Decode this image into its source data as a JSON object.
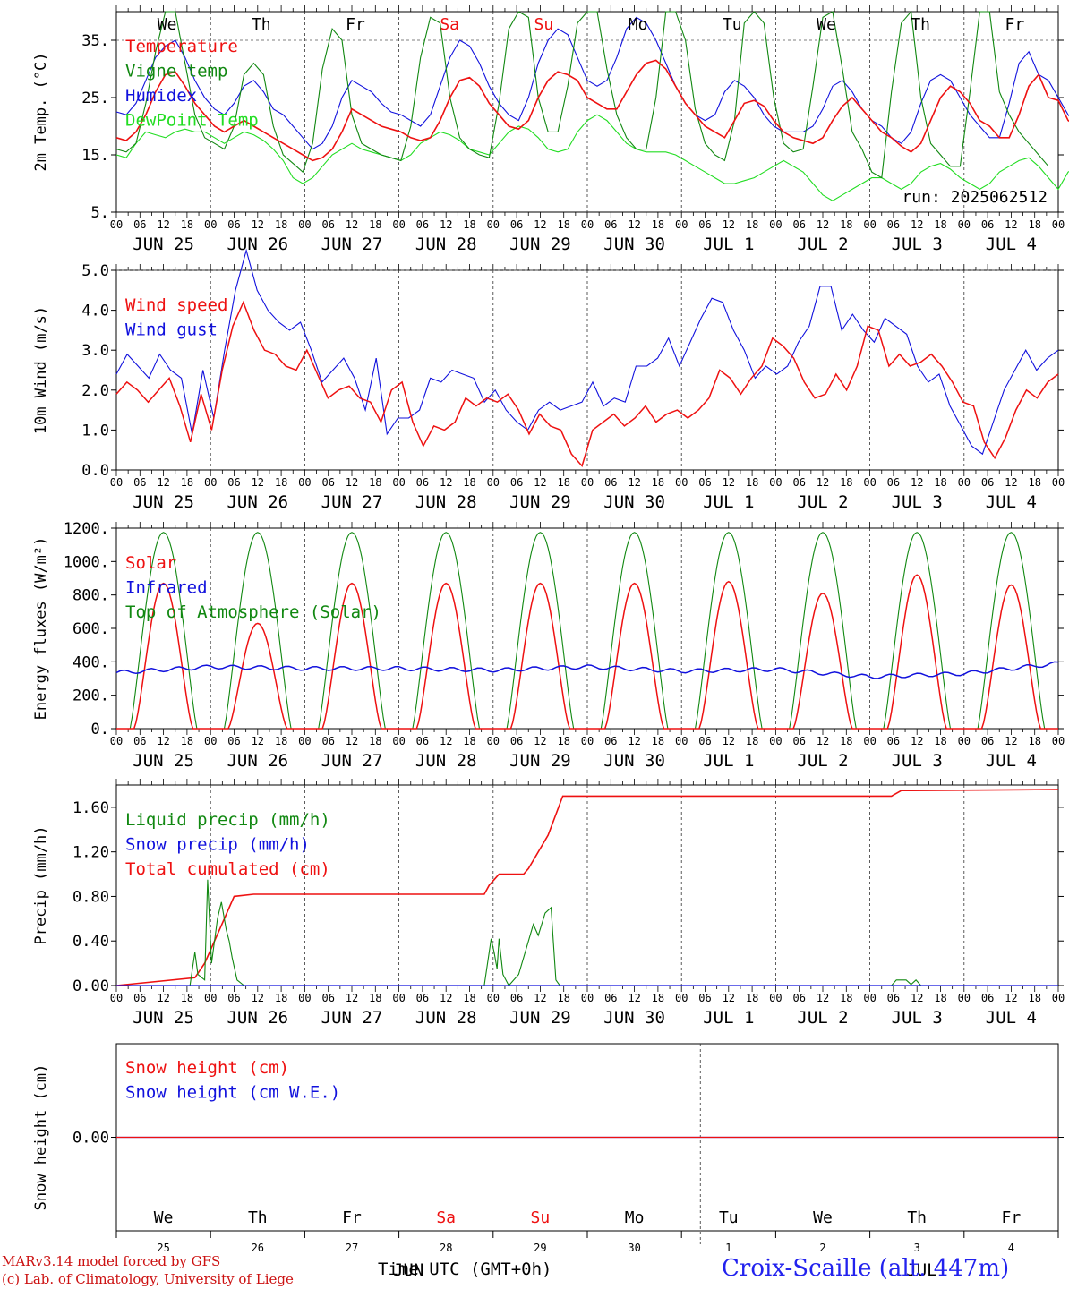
{
  "days": [
    "We",
    "Th",
    "Fr",
    "Sa",
    "Su",
    "Mo",
    "Tu",
    "We",
    "Th",
    "Fr"
  ],
  "weekend_days": [
    3,
    4
  ],
  "dates": [
    "JUN 25",
    "JUN 26",
    "JUN 27",
    "JUN 28",
    "JUN 29",
    "JUN 30",
    "JUL  1",
    "JUL  2",
    "JUL  3",
    "JUL  4"
  ],
  "day_numbers": [
    "25",
    "26",
    "27",
    "28",
    "29",
    "30",
    "1",
    "2",
    "3",
    "4"
  ],
  "hour_labels": [
    "00",
    "06",
    "12",
    "18"
  ],
  "month_labels": [
    "JUN",
    "JUL"
  ],
  "run_label": "run: 2025062512",
  "xlabel": "Time UTC (GMT+0h)",
  "credit_line1": "MARv3.14 model forced by GFS",
  "credit_line2": "(c) Lab. of Climatology, University of Liege",
  "location": "Croix-Scaille (alt. 447m)",
  "colors": {
    "red": "#ee1111",
    "green": "#118811",
    "blue": "#1111dd",
    "lightgreen": "#22dd22"
  },
  "chart_data": [
    {
      "type": "line",
      "ylabel": "2m Temp. (°C)",
      "yticks": [
        "5.",
        "15.",
        "25.",
        "35."
      ],
      "ylim": [
        5,
        40
      ],
      "x_step_hours": 3,
      "series": [
        {
          "name": "Temperature",
          "color": "red",
          "values": [
            18,
            17.5,
            19,
            22,
            26,
            29,
            29.5,
            27,
            24,
            22,
            20,
            19,
            20,
            21,
            20,
            19,
            18,
            17,
            16,
            15,
            14,
            14.5,
            16,
            19,
            23,
            22,
            21,
            20,
            19.5,
            19,
            18,
            17.5,
            18,
            21,
            25,
            28,
            28.5,
            27,
            24,
            22,
            20,
            19.5,
            21,
            25,
            28,
            29.5,
            29,
            28,
            25,
            24,
            23,
            23,
            26,
            29,
            31,
            31.5,
            30,
            27,
            24,
            22,
            20,
            19,
            18,
            21,
            24,
            24.5,
            23.5,
            21,
            19,
            18,
            17.5,
            17,
            18,
            21,
            23.5,
            25,
            23,
            21,
            19,
            18,
            16.5,
            15.5,
            17,
            21,
            25,
            27,
            26,
            24,
            21,
            20,
            18,
            18,
            22,
            27,
            29,
            25,
            24.5,
            21,
            20,
            17
          ]
        },
        {
          "name": "Vigne temp",
          "color": "green",
          "values": [
            16,
            15.5,
            17,
            24,
            33,
            40,
            40,
            31,
            22,
            18,
            17,
            16,
            20,
            29,
            31,
            29,
            20,
            15,
            13.5,
            12,
            17,
            30,
            37,
            35,
            22,
            17,
            16,
            15,
            14.5,
            14,
            20,
            32,
            39,
            38,
            25,
            18,
            16,
            15,
            14.5,
            24,
            37,
            40,
            39,
            25,
            19,
            19,
            27,
            38,
            40,
            40,
            30,
            22,
            18,
            16,
            16,
            25,
            40,
            40,
            35,
            23,
            17,
            15,
            14,
            21,
            38,
            40,
            38,
            25,
            17,
            15.5,
            16,
            27,
            39,
            40,
            30,
            19,
            16,
            12,
            11,
            26,
            38,
            40,
            25,
            17,
            15,
            13,
            13,
            26,
            40,
            40,
            26,
            22,
            19,
            17,
            15,
            13
          ]
        },
        {
          "name": "Humidex",
          "color": "blue",
          "values": [
            22.5,
            22,
            24,
            28,
            32,
            34,
            35,
            32,
            28,
            25,
            23,
            22,
            24,
            27,
            28,
            26,
            23,
            22,
            20,
            18,
            16,
            17,
            20,
            25,
            28,
            27,
            26,
            24,
            22.5,
            22,
            21,
            20,
            22,
            27,
            32,
            35,
            34,
            31,
            27,
            24,
            22,
            21,
            25,
            31,
            35,
            37,
            36,
            32,
            28,
            27,
            28,
            32,
            37,
            39,
            38,
            35,
            31,
            27,
            24,
            22,
            21,
            22,
            26,
            28,
            27,
            25,
            22,
            20,
            19,
            19,
            19,
            20,
            23,
            27,
            28,
            26,
            23,
            21,
            20,
            18,
            17,
            19,
            24,
            28,
            29,
            28,
            25,
            22,
            20,
            18,
            18,
            24,
            31,
            33,
            29,
            28,
            25,
            22,
            20
          ]
        },
        {
          "name": "DewPoint Temp",
          "color": "lightgreen",
          "values": [
            15,
            14.5,
            17,
            19,
            18.5,
            18,
            19,
            19.5,
            19,
            19,
            18,
            17,
            18,
            19,
            18.5,
            17.5,
            16,
            14,
            11,
            10,
            11,
            13,
            15,
            16,
            17,
            16,
            15.5,
            15,
            14.5,
            14,
            15,
            17,
            18,
            19,
            18.5,
            17.5,
            16,
            15.5,
            15,
            17,
            19,
            20,
            19.5,
            18,
            16,
            15.5,
            16,
            19,
            21,
            22,
            21,
            19,
            17,
            16,
            15.5,
            15.5,
            15.5,
            15,
            14,
            13,
            12,
            11,
            10,
            10,
            10.5,
            11,
            12,
            13,
            14,
            13,
            12,
            10,
            8,
            7,
            8,
            9,
            10,
            11,
            11,
            10,
            9,
            10,
            12,
            13,
            13.5,
            12.5,
            11,
            10,
            9,
            10,
            12,
            13,
            14,
            14.5,
            13,
            11,
            9,
            12,
            13
          ]
        }
      ]
    },
    {
      "type": "line",
      "ylabel": "10m Wind (m/s)",
      "yticks": [
        "0.0",
        "1.0",
        "2.0",
        "3.0",
        "4.0",
        "5.0"
      ],
      "ylim": [
        0,
        5
      ],
      "x_step_hours": 3,
      "series": [
        {
          "name": "Wind speed",
          "color": "red",
          "values": [
            1.9,
            2.2,
            2.0,
            1.7,
            2.0,
            2.3,
            1.6,
            0.7,
            1.9,
            1.0,
            2.5,
            3.6,
            4.2,
            3.5,
            3.0,
            2.9,
            2.6,
            2.5,
            3.0,
            2.4,
            1.8,
            2.0,
            2.1,
            1.8,
            1.7,
            1.2,
            2.0,
            2.2,
            1.2,
            0.6,
            1.1,
            1.0,
            1.2,
            1.8,
            1.6,
            1.8,
            1.7,
            1.9,
            1.5,
            0.9,
            1.4,
            1.1,
            1.0,
            0.4,
            0.1,
            1.0,
            1.2,
            1.4,
            1.1,
            1.3,
            1.6,
            1.2,
            1.4,
            1.5,
            1.3,
            1.5,
            1.8,
            2.5,
            2.3,
            1.9,
            2.3,
            2.6,
            3.3,
            3.1,
            2.8,
            2.2,
            1.8,
            1.9,
            2.4,
            2.0,
            2.6,
            3.6,
            3.5,
            2.6,
            2.9,
            2.6,
            2.7,
            2.9,
            2.6,
            2.2,
            1.7,
            1.6,
            0.7,
            0.3,
            0.8,
            1.5,
            2.0,
            1.8,
            2.2,
            2.4
          ]
        },
        {
          "name": "Wind gust",
          "color": "blue",
          "values": [
            2.4,
            2.9,
            2.6,
            2.3,
            2.9,
            2.5,
            2.3,
            0.9,
            2.5,
            1.3,
            3.0,
            4.5,
            5.5,
            4.5,
            4.0,
            3.7,
            3.5,
            3.7,
            3.0,
            2.2,
            2.5,
            2.8,
            2.3,
            1.5,
            2.8,
            0.9,
            1.3,
            1.3,
            1.5,
            2.3,
            2.2,
            2.5,
            2.4,
            2.3,
            1.7,
            2.0,
            1.5,
            1.2,
            1.0,
            1.5,
            1.7,
            1.5,
            1.6,
            1.7,
            2.2,
            1.6,
            1.8,
            1.7,
            2.6,
            2.6,
            2.8,
            3.3,
            2.6,
            3.2,
            3.8,
            4.3,
            4.2,
            3.5,
            3.0,
            2.3,
            2.6,
            2.4,
            2.6,
            3.2,
            3.6,
            4.6,
            4.6,
            3.5,
            3.9,
            3.5,
            3.2,
            3.8,
            3.6,
            3.4,
            2.6,
            2.2,
            2.4,
            1.6,
            1.1,
            0.6,
            0.4,
            1.2,
            2.0,
            2.5,
            3.0,
            2.5,
            2.8,
            3.0
          ]
        }
      ]
    },
    {
      "type": "line",
      "ylabel": "Energy fluxes (W/m²)",
      "yticks": [
        "0.",
        "200.",
        "400.",
        "600.",
        "800.",
        "1000.",
        "1200."
      ],
      "ylim": [
        0,
        1200
      ],
      "series": [
        {
          "name": "Solar",
          "color": "red",
          "daily_peaks": [
            870,
            630,
            870,
            870,
            870,
            870,
            880,
            810,
            920,
            860
          ]
        },
        {
          "name": "Infrared",
          "color": "blue",
          "daily_values": [
            335,
            370,
            360,
            360,
            350,
            370,
            345,
            355,
            310,
            330,
            390
          ]
        },
        {
          "name": "Top of Atmosphere (Solar)",
          "color": "green",
          "daily_peak": 1175
        }
      ]
    },
    {
      "type": "line",
      "ylabel": "Precip (mm/h)",
      "yticks": [
        "0.00",
        "0.40",
        "0.80",
        "1.20",
        "1.60"
      ],
      "ylim": [
        0,
        1.8
      ],
      "series": [
        {
          "name": "Liquid precip (mm/h)",
          "color": "green",
          "values": [
            [
              7.5,
              0
            ],
            [
              8,
              0.3
            ],
            [
              8.3,
              0.1
            ],
            [
              9,
              0.05
            ],
            [
              9.3,
              0.95
            ],
            [
              9.7,
              0.2
            ],
            [
              10.3,
              0.6
            ],
            [
              10.7,
              0.75
            ],
            [
              11.2,
              0.5
            ],
            [
              11.5,
              0.4
            ],
            [
              11.8,
              0.25
            ],
            [
              12.3,
              0.05
            ],
            [
              13,
              0
            ],
            [
              37.5,
              0
            ],
            [
              38.2,
              0.42
            ],
            [
              38.5,
              0.3
            ],
            [
              38.8,
              0.15
            ],
            [
              39,
              0.42
            ],
            [
              39.4,
              0.1
            ],
            [
              40,
              0
            ],
            [
              41,
              0.1
            ],
            [
              42,
              0.4
            ],
            [
              42.5,
              0.55
            ],
            [
              43,
              0.45
            ],
            [
              43.7,
              0.65
            ],
            [
              44.3,
              0.7
            ],
            [
              44.8,
              0.05
            ],
            [
              45.2,
              0
            ],
            [
              79,
              0
            ],
            [
              79.5,
              0.05
            ],
            [
              80.5,
              0.05
            ],
            [
              81,
              0.01
            ],
            [
              81.5,
              0.05
            ],
            [
              82,
              0
            ]
          ]
        },
        {
          "name": "Snow precip (mm/h)",
          "color": "blue",
          "values": []
        },
        {
          "name": "Total cumulated (cm)",
          "color": "red",
          "values": [
            [
              0,
              0
            ],
            [
              8,
              0.07
            ],
            [
              9,
              0.2
            ],
            [
              10.5,
              0.5
            ],
            [
              12,
              0.8
            ],
            [
              14,
              0.82
            ],
            [
              37.5,
              0.82
            ],
            [
              38,
              0.9
            ],
            [
              39,
              1.0
            ],
            [
              41.5,
              1.0
            ],
            [
              42,
              1.05
            ],
            [
              44,
              1.35
            ],
            [
              45.5,
              1.7
            ],
            [
              46,
              1.7
            ],
            [
              79,
              1.7
            ],
            [
              80,
              1.75
            ],
            [
              81,
              1.75
            ]
          ]
        }
      ]
    },
    {
      "type": "line",
      "ylabel": "Snow height (cm)",
      "yticks": [
        "0.00"
      ],
      "ylim": [
        -1,
        1
      ],
      "series": [
        {
          "name": "Snow height (cm)",
          "color": "red",
          "values": [
            0,
            0
          ]
        },
        {
          "name": "Snow height (cm W.E.)",
          "color": "blue",
          "values": [
            0,
            0
          ]
        }
      ]
    }
  ]
}
